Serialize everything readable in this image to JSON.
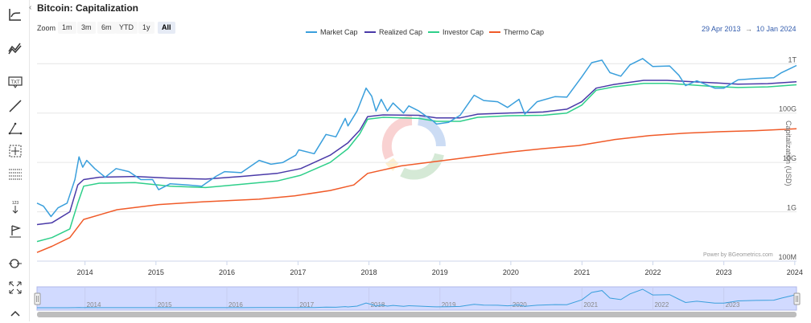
{
  "title": "Bitcoin: Capitalization",
  "zoom": {
    "label": "Zoom",
    "buttons": [
      "1m",
      "3m",
      "6m",
      "YTD",
      "1y",
      "All"
    ],
    "active": "All"
  },
  "date_range": {
    "from": "29 Apr 2013",
    "separator": "→",
    "to": "10 Jan 2024"
  },
  "credit": "Power by BGeometrics.com",
  "toolbar_icons": [
    "line-chart-icon",
    "series-icon",
    "text-icon",
    "line-draw-icon",
    "triangle-icon",
    "crosshair-grid-icon",
    "horizontal-lines-icon",
    "measure-icon",
    "flag-icon",
    "zoom-icon",
    "fullscreen-icon",
    "chevron-up-icon"
  ],
  "chart_data": {
    "type": "line",
    "title": "Bitcoin: Capitalization",
    "ylabel": "Capitalization (USD)",
    "yscale": "log",
    "ylim": [
      100000000,
      3000000000000
    ],
    "y_ticks": [
      {
        "value": 100000000,
        "label": "100M"
      },
      {
        "value": 1000000000,
        "label": "1G"
      },
      {
        "value": 10000000000,
        "label": "10G"
      },
      {
        "value": 100000000000,
        "label": "100G"
      },
      {
        "value": 1000000000000,
        "label": "1T"
      }
    ],
    "x_ticks": [
      "2014",
      "2015",
      "2016",
      "2017",
      "2018",
      "2019",
      "2020",
      "2021",
      "2022",
      "2023",
      "2024"
    ],
    "xlim": [
      "2013-04-29",
      "2024-01-10"
    ],
    "legend_position": "top-center",
    "grid": true,
    "series": [
      {
        "name": "Market Cap",
        "color": "#3a9fdc",
        "points": [
          [
            "2013-04-29",
            1500000000
          ],
          [
            "2013-06-01",
            1300000000
          ],
          [
            "2013-07-10",
            800000000
          ],
          [
            "2013-08-15",
            1200000000
          ],
          [
            "2013-10-01",
            1500000000
          ],
          [
            "2013-11-10",
            4500000000
          ],
          [
            "2013-12-01",
            13000000000
          ],
          [
            "2013-12-20",
            8000000000
          ],
          [
            "2014-01-10",
            11000000000
          ],
          [
            "2014-02-20",
            7500000000
          ],
          [
            "2014-04-15",
            5000000000
          ],
          [
            "2014-06-10",
            7500000000
          ],
          [
            "2014-08-15",
            6500000000
          ],
          [
            "2014-10-15",
            4500000000
          ],
          [
            "2014-12-15",
            4500000000
          ],
          [
            "2015-01-15",
            2800000000
          ],
          [
            "2015-03-15",
            3700000000
          ],
          [
            "2015-06-15",
            3500000000
          ],
          [
            "2015-08-25",
            3300000000
          ],
          [
            "2015-11-05",
            5200000000
          ],
          [
            "2015-12-20",
            6500000000
          ],
          [
            "2016-03-15",
            6200000000
          ],
          [
            "2016-06-15",
            11000000000
          ],
          [
            "2016-08-15",
            9200000000
          ],
          [
            "2016-10-15",
            10000000000
          ],
          [
            "2016-12-20",
            14000000000
          ],
          [
            "2017-01-05",
            18000000000
          ],
          [
            "2017-03-25",
            15000000000
          ],
          [
            "2017-05-25",
            37000000000
          ],
          [
            "2017-07-15",
            33000000000
          ],
          [
            "2017-09-01",
            78000000000
          ],
          [
            "2017-09-15",
            55000000000
          ],
          [
            "2017-11-01",
            110000000000
          ],
          [
            "2017-12-17",
            320000000000
          ],
          [
            "2018-01-15",
            220000000000
          ],
          [
            "2018-02-06",
            110000000000
          ],
          [
            "2018-03-05",
            190000000000
          ],
          [
            "2018-04-06",
            110000000000
          ],
          [
            "2018-05-05",
            160000000000
          ],
          [
            "2018-06-28",
            100000000000
          ],
          [
            "2018-07-25",
            140000000000
          ],
          [
            "2018-09-15",
            110000000000
          ],
          [
            "2018-11-25",
            70000000000
          ],
          [
            "2018-12-15",
            60000000000
          ],
          [
            "2019-02-15",
            65000000000
          ],
          [
            "2019-04-15",
            90000000000
          ],
          [
            "2019-06-26",
            230000000000
          ],
          [
            "2019-08-15",
            180000000000
          ],
          [
            "2019-10-25",
            170000000000
          ],
          [
            "2019-12-15",
            130000000000
          ],
          [
            "2020-02-12",
            190000000000
          ],
          [
            "2020-03-13",
            95000000000
          ],
          [
            "2020-05-15",
            170000000000
          ],
          [
            "2020-08-15",
            215000000000
          ],
          [
            "2020-10-15",
            210000000000
          ],
          [
            "2020-12-31",
            540000000000
          ],
          [
            "2021-02-20",
            1050000000000
          ],
          [
            "2021-04-14",
            1180000000000
          ],
          [
            "2021-05-25",
            660000000000
          ],
          [
            "2021-07-20",
            560000000000
          ],
          [
            "2021-09-05",
            950000000000
          ],
          [
            "2021-11-09",
            1270000000000
          ],
          [
            "2021-12-31",
            880000000000
          ],
          [
            "2022-03-28",
            900000000000
          ],
          [
            "2022-05-15",
            580000000000
          ],
          [
            "2022-06-18",
            360000000000
          ],
          [
            "2022-08-15",
            450000000000
          ],
          [
            "2022-11-15",
            320000000000
          ],
          [
            "2023-01-01",
            320000000000
          ],
          [
            "2023-03-15",
            470000000000
          ],
          [
            "2023-06-15",
            500000000000
          ],
          [
            "2023-09-15",
            520000000000
          ],
          [
            "2023-10-25",
            660000000000
          ],
          [
            "2023-12-15",
            820000000000
          ],
          [
            "2024-01-10",
            920000000000
          ]
        ]
      },
      {
        "name": "Realized Cap",
        "color": "#4a3aa8",
        "points": [
          [
            "2013-04-29",
            550000000
          ],
          [
            "2013-07-15",
            600000000
          ],
          [
            "2013-10-15",
            1000000000
          ],
          [
            "2013-11-25",
            3500000000
          ],
          [
            "2013-12-25",
            4500000000
          ],
          [
            "2014-03-15",
            5000000000
          ],
          [
            "2014-09-15",
            5200000000
          ],
          [
            "2015-03-15",
            4800000000
          ],
          [
            "2015-09-15",
            4600000000
          ],
          [
            "2016-03-15",
            5200000000
          ],
          [
            "2016-09-15",
            6000000000
          ],
          [
            "2017-01-15",
            7500000000
          ],
          [
            "2017-06-15",
            14000000000
          ],
          [
            "2017-09-15",
            25000000000
          ],
          [
            "2017-11-15",
            45000000000
          ],
          [
            "2017-12-25",
            85000000000
          ],
          [
            "2018-03-15",
            92000000000
          ],
          [
            "2018-09-15",
            90000000000
          ],
          [
            "2018-12-15",
            80000000000
          ],
          [
            "2019-04-15",
            80000000000
          ],
          [
            "2019-07-15",
            95000000000
          ],
          [
            "2019-12-15",
            100000000000
          ],
          [
            "2020-06-15",
            105000000000
          ],
          [
            "2020-10-15",
            120000000000
          ],
          [
            "2020-12-31",
            170000000000
          ],
          [
            "2021-03-15",
            320000000000
          ],
          [
            "2021-06-15",
            380000000000
          ],
          [
            "2021-11-15",
            460000000000
          ],
          [
            "2022-03-15",
            460000000000
          ],
          [
            "2022-06-15",
            440000000000
          ],
          [
            "2022-11-15",
            410000000000
          ],
          [
            "2023-03-15",
            385000000000
          ],
          [
            "2023-08-15",
            395000000000
          ],
          [
            "2024-01-10",
            430000000000
          ]
        ]
      },
      {
        "name": "Investor Cap",
        "color": "#2ecf8a",
        "points": [
          [
            "2013-04-29",
            250000000
          ],
          [
            "2013-07-15",
            300000000
          ],
          [
            "2013-10-15",
            450000000
          ],
          [
            "2013-11-25",
            1500000000
          ],
          [
            "2013-12-25",
            3300000000
          ],
          [
            "2014-03-15",
            3800000000
          ],
          [
            "2014-09-15",
            3900000000
          ],
          [
            "2015-03-15",
            3300000000
          ],
          [
            "2015-09-15",
            3100000000
          ],
          [
            "2016-03-15",
            3600000000
          ],
          [
            "2016-09-15",
            4200000000
          ],
          [
            "2017-01-15",
            5500000000
          ],
          [
            "2017-06-15",
            10000000000
          ],
          [
            "2017-09-15",
            19000000000
          ],
          [
            "2017-11-15",
            38000000000
          ],
          [
            "2017-12-25",
            75000000000
          ],
          [
            "2018-03-15",
            82000000000
          ],
          [
            "2018-09-15",
            78000000000
          ],
          [
            "2018-12-15",
            68000000000
          ],
          [
            "2019-04-15",
            68000000000
          ],
          [
            "2019-07-15",
            82000000000
          ],
          [
            "2019-12-15",
            88000000000
          ],
          [
            "2020-06-15",
            90000000000
          ],
          [
            "2020-10-15",
            100000000000
          ],
          [
            "2020-12-31",
            145000000000
          ],
          [
            "2021-03-15",
            290000000000
          ],
          [
            "2021-06-15",
            340000000000
          ],
          [
            "2021-11-15",
            400000000000
          ],
          [
            "2022-03-15",
            400000000000
          ],
          [
            "2022-06-15",
            380000000000
          ],
          [
            "2022-11-15",
            345000000000
          ],
          [
            "2023-03-15",
            330000000000
          ],
          [
            "2023-08-15",
            340000000000
          ],
          [
            "2024-01-10",
            375000000000
          ]
        ]
      },
      {
        "name": "Thermo Cap",
        "color": "#f05a28",
        "points": [
          [
            "2013-04-29",
            150000000
          ],
          [
            "2013-07-15",
            200000000
          ],
          [
            "2013-10-15",
            300000000
          ],
          [
            "2013-12-25",
            700000000
          ],
          [
            "2014-06-15",
            1100000000
          ],
          [
            "2015-01-15",
            1400000000
          ],
          [
            "2015-09-15",
            1600000000
          ],
          [
            "2016-06-15",
            1800000000
          ],
          [
            "2016-12-15",
            2100000000
          ],
          [
            "2017-06-15",
            2700000000
          ],
          [
            "2017-10-15",
            3500000000
          ],
          [
            "2017-12-25",
            6000000000
          ],
          [
            "2018-06-15",
            8500000000
          ],
          [
            "2018-12-15",
            10500000000
          ],
          [
            "2019-06-15",
            13000000000
          ],
          [
            "2019-12-15",
            16000000000
          ],
          [
            "2020-06-15",
            19000000000
          ],
          [
            "2020-12-15",
            22000000000
          ],
          [
            "2021-06-15",
            29000000000
          ],
          [
            "2021-12-15",
            35000000000
          ],
          [
            "2022-06-15",
            39000000000
          ],
          [
            "2022-12-15",
            42000000000
          ],
          [
            "2023-06-15",
            44000000000
          ],
          [
            "2024-01-10",
            48000000000
          ]
        ]
      }
    ]
  }
}
